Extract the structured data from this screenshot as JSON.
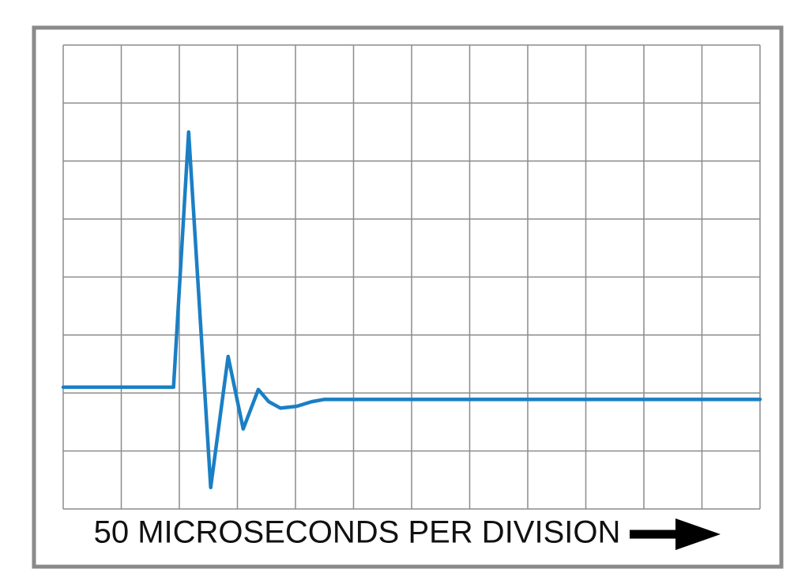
{
  "chart_data": {
    "type": "line",
    "x_label": "50 MICROSECONDS PER DIVISION",
    "x": [
      0,
      95,
      108,
      127,
      142,
      155,
      168,
      177,
      187,
      201,
      214,
      225,
      600
    ],
    "values": [
      2.1,
      2.1,
      6.5,
      0.37,
      2.63,
      1.38,
      2.06,
      1.85,
      1.74,
      1.77,
      1.85,
      1.89,
      1.89
    ],
    "color": "#1b7fc4",
    "xlim": [
      0,
      600
    ],
    "xticks": [
      0,
      50,
      100,
      150,
      200,
      250,
      300,
      350,
      400,
      450,
      500,
      550,
      600
    ],
    "ylim": [
      0,
      8
    ],
    "yticks": [
      0,
      1,
      2,
      3,
      4,
      5,
      6,
      7,
      8
    ],
    "grid": true
  }
}
